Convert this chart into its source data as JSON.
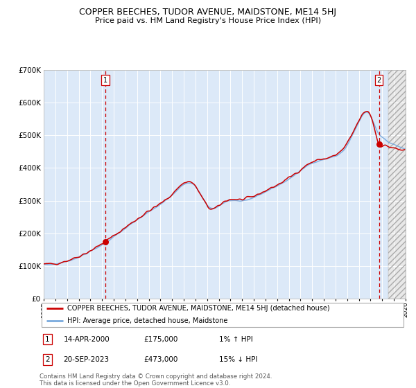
{
  "title": "COPPER BEECHES, TUDOR AVENUE, MAIDSTONE, ME14 5HJ",
  "subtitle": "Price paid vs. HM Land Registry's House Price Index (HPI)",
  "legend_line1": "COPPER BEECHES, TUDOR AVENUE, MAIDSTONE, ME14 5HJ (detached house)",
  "legend_line2": "HPI: Average price, detached house, Maidstone",
  "annotation1_date": "14-APR-2000",
  "annotation1_price": "£175,000",
  "annotation1_hpi": "1% ↑ HPI",
  "annotation1_year": 2000.29,
  "annotation1_value": 175000,
  "annotation2_date": "20-SEP-2023",
  "annotation2_price": "£473,000",
  "annotation2_hpi": "15% ↓ HPI",
  "annotation2_year": 2023.72,
  "annotation2_value": 473000,
  "xmin": 1995,
  "xmax": 2026,
  "ymin": 0,
  "ymax": 700000,
  "yticks": [
    0,
    100000,
    200000,
    300000,
    400000,
    500000,
    600000,
    700000
  ],
  "ytick_labels": [
    "£0",
    "£100K",
    "£200K",
    "£300K",
    "£400K",
    "£500K",
    "£600K",
    "£700K"
  ],
  "bg_color_main": "#dce9f8",
  "bg_color_future": "#e0e0e0",
  "grid_color": "#ffffff",
  "hpi_line_color": "#7aaadd",
  "price_line_color": "#cc0000",
  "marker_color": "#cc0000",
  "vline_color": "#cc0000",
  "footer_text": "Contains HM Land Registry data © Crown copyright and database right 2024.\nThis data is licensed under the Open Government Licence v3.0.",
  "future_cutoff_year": 2024.5
}
